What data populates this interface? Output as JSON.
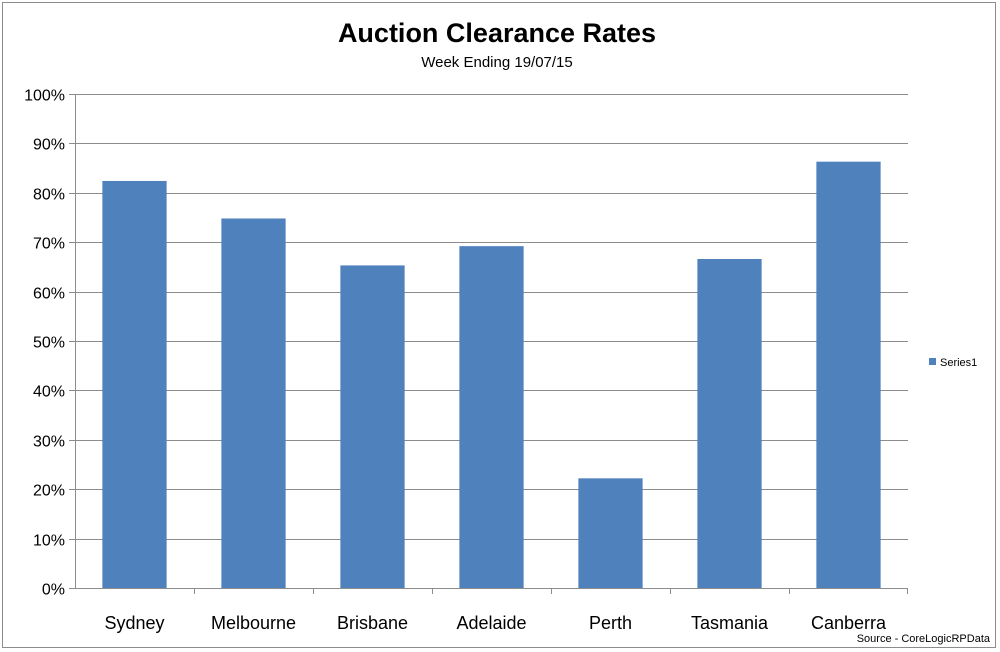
{
  "chart_data": {
    "type": "bar",
    "title": "Auction Clearance Rates",
    "subtitle": "Week Ending 19/07/15",
    "categories": [
      "Sydney",
      "Melbourne",
      "Brisbane",
      "Adelaide",
      "Perth",
      "Tasmania",
      "Canberra"
    ],
    "series": [
      {
        "name": "Series1",
        "values": [
          82.4,
          74.8,
          65.3,
          69.2,
          22.2,
          66.6,
          86.3
        ],
        "color": "#4f81bd"
      }
    ],
    "ylim": [
      0,
      100
    ],
    "yticks": [
      "0%",
      "10%",
      "20%",
      "30%",
      "40%",
      "50%",
      "60%",
      "70%",
      "80%",
      "90%",
      "100%"
    ],
    "grid": true,
    "legend_position": "right"
  },
  "source": "Source - CoreLogicRPData"
}
